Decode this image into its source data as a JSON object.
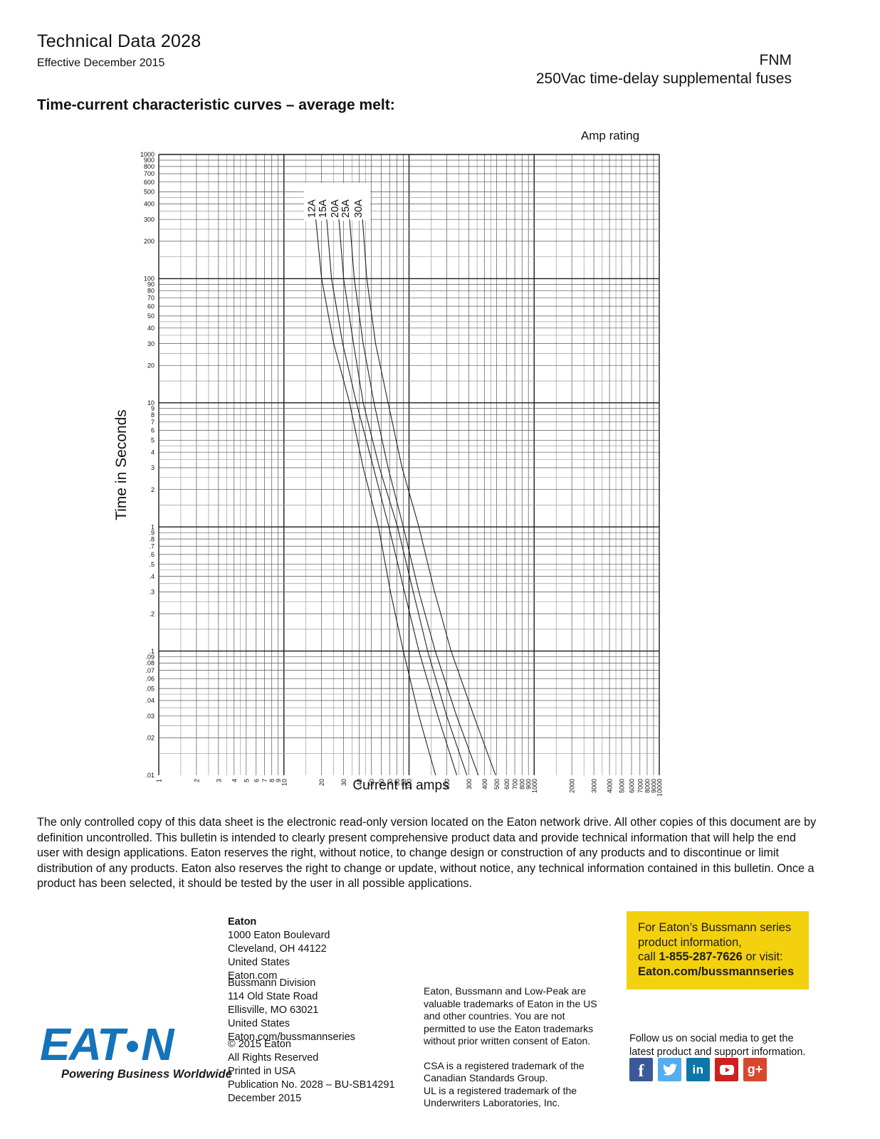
{
  "header": {
    "doc_title": "Technical Data 2028",
    "effective_date": "Effective December 2015",
    "product_family": "FNM",
    "product_description": "250Vac time-delay supplemental fuses",
    "section_title": "Time-current characteristic curves – average melt:"
  },
  "chart_data": {
    "type": "line",
    "title": "Amp rating",
    "xlabel": "Current in amps",
    "ylabel": "Time in Seconds",
    "x_scale": "log",
    "y_scale": "log",
    "xlim": [
      1,
      10000
    ],
    "ylim": [
      0.01,
      1000
    ],
    "grid": true,
    "x_ticks": [
      "1",
      "2",
      "3",
      "4",
      "5",
      "6",
      "7",
      "8",
      "9",
      "10",
      "20",
      "30",
      "40",
      "50",
      "60",
      "70",
      "80",
      "90",
      "100",
      "200",
      "300",
      "400",
      "500",
      "600",
      "700",
      "800",
      "900",
      "1000",
      "2000",
      "3000",
      "4000",
      "5000",
      "6000",
      "7000",
      "8000",
      "9000",
      "10000"
    ],
    "y_ticks": [
      "1000",
      "900",
      "800",
      "700",
      "600",
      "500",
      "400",
      "300",
      "200",
      "100",
      "90",
      "80",
      "70",
      "60",
      "50",
      "40",
      "30",
      "20",
      "10",
      "9",
      "8",
      "7",
      "6",
      "5",
      "4",
      "3",
      "2",
      "1",
      ".9",
      ".8",
      ".7",
      ".6",
      ".5",
      ".4",
      ".3",
      ".2",
      ".1",
      ".09",
      ".08",
      ".07",
      ".06",
      ".05",
      ".04",
      ".03",
      ".02",
      ".01"
    ],
    "series": [
      {
        "name": "12A",
        "points": [
          [
            18,
            300
          ],
          [
            20,
            100
          ],
          [
            25,
            30
          ],
          [
            33.5,
            10
          ],
          [
            43,
            3
          ],
          [
            57,
            1
          ],
          [
            71,
            0.3
          ],
          [
            90,
            0.1
          ],
          [
            120,
            0.03
          ],
          [
            163,
            0.01
          ]
        ]
      },
      {
        "name": "15A",
        "points": [
          [
            22,
            300
          ],
          [
            24,
            100
          ],
          [
            29.5,
            30
          ],
          [
            38,
            10
          ],
          [
            52,
            3
          ],
          [
            69,
            1
          ],
          [
            92,
            0.3
          ],
          [
            120,
            0.1
          ],
          [
            170,
            0.03
          ],
          [
            241,
            0.01
          ]
        ]
      },
      {
        "name": "20A",
        "points": [
          [
            27.5,
            300
          ],
          [
            30,
            100
          ],
          [
            36,
            30
          ],
          [
            43,
            10
          ],
          [
            58,
            3
          ],
          [
            81,
            1
          ],
          [
            108,
            0.3
          ],
          [
            141,
            0.1
          ],
          [
            200,
            0.03
          ],
          [
            290,
            0.01
          ]
        ]
      },
      {
        "name": "25A",
        "points": [
          [
            33.5,
            300
          ],
          [
            36.5,
            100
          ],
          [
            43,
            30
          ],
          [
            52.5,
            10
          ],
          [
            68,
            3
          ],
          [
            90,
            1
          ],
          [
            120,
            0.3
          ],
          [
            162,
            0.1
          ],
          [
            240,
            0.03
          ],
          [
            358,
            0.01
          ]
        ]
      },
      {
        "name": "30A",
        "points": [
          [
            42.5,
            300
          ],
          [
            46,
            100
          ],
          [
            54,
            30
          ],
          [
            68,
            10
          ],
          [
            88,
            3
          ],
          [
            120,
            1
          ],
          [
            160,
            0.3
          ],
          [
            217,
            0.1
          ],
          [
            330,
            0.03
          ],
          [
            492,
            0.01
          ]
        ]
      }
    ]
  },
  "disclaimer": "The only controlled copy of this data sheet is the electronic read-only version located on the Eaton network drive. All other copies of this document are by definition uncontrolled. This bulletin is intended to clearly present comprehensive product data and provide technical information that will help the end user with design applications. Eaton reserves the right, without notice, to change design or construction of any products and to discontinue or limit distribution of any products. Eaton also reserves the right to change or update, without notice, any technical information contained in this bulletin. Once a product has been selected, it should be tested by the user in all possible applications.",
  "footer": {
    "eaton": {
      "name": "Eaton",
      "lines": [
        "1000 Eaton Boulevard",
        "Cleveland, OH 44122",
        "United States",
        "Eaton.com"
      ]
    },
    "bussmann": {
      "lines": [
        "Bussmann Division",
        "114 Old State Road",
        "Ellisville, MO 63021",
        "United States",
        "Eaton.com/bussmannseries"
      ]
    },
    "copyright": {
      "lines": [
        "© 2015 Eaton",
        "All Rights Reserved",
        "Printed in USA",
        "Publication No. 2028 – BU-SB14291",
        "December 2015"
      ]
    },
    "trademarks": {
      "p1": "Eaton, Bussmann and Low-Peak are valuable trademarks of Eaton in the US and other countries. You are not permitted to use the Eaton trademarks without prior written consent of Eaton.",
      "p2": "CSA is a registered trademark of the Canadian Standards Group.",
      "p3": "UL is a registered trademark of the Underwriters Laboratories, Inc."
    },
    "promo": {
      "bg": "#F3D10E",
      "line1": "For Eaton’s Bussmann series",
      "line2": "product information,",
      "call_prefix": "call ",
      "phone": "1-855-287-7626",
      "call_suffix": " or visit:",
      "link": "Eaton.com/bussmannseries"
    },
    "social": {
      "text_line1": "Follow us on social media to get the",
      "text_line2": "latest product and support information.",
      "icons": [
        {
          "name": "facebook",
          "color": "#3B5998",
          "glyph": "f"
        },
        {
          "name": "twitter",
          "color": "#55ACEE",
          "glyph": ""
        },
        {
          "name": "linkedin",
          "color": "#0E76A8",
          "glyph": "in"
        },
        {
          "name": "youtube",
          "color": "#CD201F",
          "glyph": ""
        },
        {
          "name": "google-plus",
          "color": "#D6492F",
          "glyph": "g+"
        }
      ]
    },
    "logo": {
      "word_left": "EAT",
      "word_right": "N",
      "tagline": "Powering Business Worldwide",
      "color": "#1573BA"
    }
  }
}
